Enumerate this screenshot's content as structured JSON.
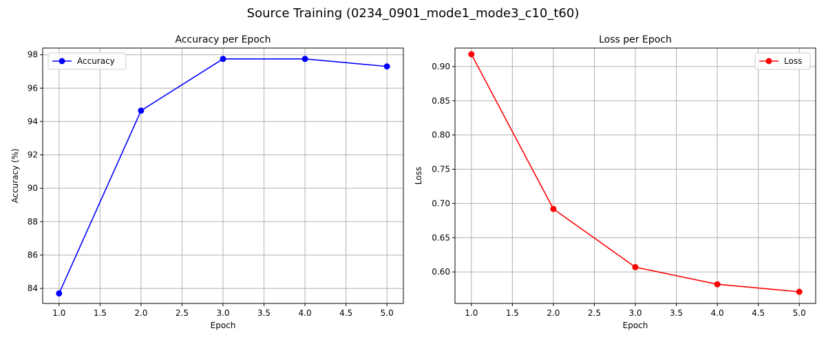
{
  "figure": {
    "suptitle": "Source Training (0234_0901_mode1_mode3_c10_t60)"
  },
  "chart_data": [
    {
      "type": "line",
      "title": "Accuracy per Epoch",
      "xlabel": "Epoch",
      "ylabel": "Accuracy (%)",
      "x": [
        1,
        2,
        3,
        4,
        5
      ],
      "series": [
        {
          "name": "Accuracy",
          "values": [
            83.7,
            94.65,
            97.75,
            97.75,
            97.3
          ],
          "color": "#0000ff",
          "marker": "circle"
        }
      ],
      "xlim": [
        0.8,
        5.2
      ],
      "ylim": [
        83.1,
        98.4
      ],
      "xticks": [
        "1.0",
        "1.5",
        "2.0",
        "2.5",
        "3.0",
        "3.5",
        "4.0",
        "4.5",
        "5.0"
      ],
      "yticks": [
        "84",
        "86",
        "88",
        "90",
        "92",
        "94",
        "96",
        "98"
      ],
      "grid": true,
      "legend_loc": "upper-left"
    },
    {
      "type": "line",
      "title": "Loss per Epoch",
      "xlabel": "Epoch",
      "ylabel": "Loss",
      "x": [
        1,
        2,
        3,
        4,
        5
      ],
      "series": [
        {
          "name": "Loss",
          "values": [
            0.918,
            0.692,
            0.607,
            0.582,
            0.571
          ],
          "color": "#ff0000",
          "marker": "circle"
        }
      ],
      "xlim": [
        0.8,
        5.2
      ],
      "ylim": [
        0.554,
        0.927
      ],
      "xticks": [
        "1.0",
        "1.5",
        "2.0",
        "2.5",
        "3.0",
        "3.5",
        "4.0",
        "4.5",
        "5.0"
      ],
      "yticks": [
        "0.60",
        "0.65",
        "0.70",
        "0.75",
        "0.80",
        "0.85",
        "0.90"
      ],
      "grid": true,
      "legend_loc": "upper-right"
    }
  ]
}
